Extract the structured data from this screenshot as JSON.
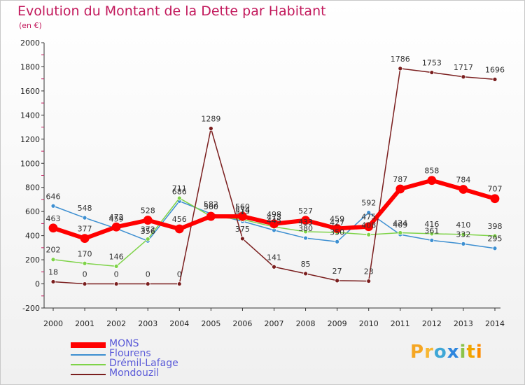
{
  "header": {
    "title": "Evolution du Montant de la Dette par Habitant",
    "subtitle": "(en €)"
  },
  "logo": {
    "text": "Proxiti"
  },
  "chart_data": {
    "type": "line",
    "title": "Evolution du Montant de la Dette par Habitant",
    "subtitle": "(en €)",
    "x": [
      "2000",
      "2001",
      "2002",
      "2003",
      "2004",
      "2005",
      "2006",
      "2007",
      "2008",
      "2009",
      "2010",
      "2011",
      "2012",
      "2013",
      "2014"
    ],
    "ylim": [
      -200,
      2000
    ],
    "yticks": [
      -200,
      0,
      200,
      400,
      600,
      800,
      1000,
      1200,
      1400,
      1600,
      1800,
      2000
    ],
    "grid": false,
    "legend_position": "bottom-left",
    "series": [
      {
        "name": "MONS",
        "color": "#ff0000",
        "values": [
          463,
          377,
          472,
          528,
          456,
          560,
          560,
          498,
          527,
          459,
          475,
          787,
          858,
          784,
          707
        ],
        "labels": [
          "463",
          "377",
          "472",
          "528",
          "456",
          "560",
          "560",
          "498",
          "527",
          "459",
          "475",
          "787",
          "858",
          "784",
          "707"
        ]
      },
      {
        "name": "Flourens",
        "color": "#3d8fd1",
        "values": [
          646,
          548,
          459,
          356,
          686,
          582,
          519,
          445,
          380,
          350,
          592,
          409,
          361,
          332,
          295
        ],
        "labels": [
          "646",
          "548",
          "459",
          "356",
          "686",
          "582",
          "519",
          "445",
          "380",
          "350",
          "592",
          "409",
          "361",
          "332",
          "295"
        ]
      },
      {
        "name": "Drémil-Lafage",
        "color": "#7ed348",
        "values": [
          202,
          170,
          146,
          372,
          711,
          560,
          534,
          473,
          433,
          427,
          408,
          424,
          416,
          410,
          398
        ],
        "labels": [
          "202",
          "170",
          "146",
          "372",
          "711",
          "560",
          "534",
          "473",
          "433",
          "427",
          "408",
          "424",
          "416",
          "410",
          "398"
        ]
      },
      {
        "name": "Mondouzil",
        "color": "#7a1e1e",
        "values": [
          18,
          0,
          0,
          0,
          0,
          1289,
          375,
          141,
          85,
          27,
          23,
          1786,
          1753,
          1717,
          1696
        ],
        "labels": [
          "18",
          "0",
          "0",
          "0",
          "0",
          "1289",
          "375",
          "141",
          "85",
          "27",
          "23",
          "1786",
          "1753",
          "1717",
          "1696"
        ]
      }
    ]
  }
}
